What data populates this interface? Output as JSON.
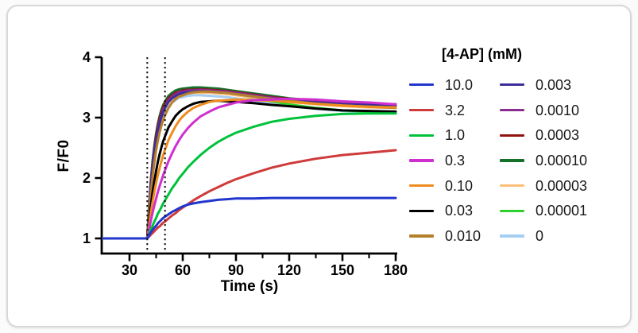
{
  "chart_data": {
    "type": "line",
    "title": "",
    "xlabel": "Time (s)",
    "ylabel": "F/F0",
    "x_ticks": [
      30,
      60,
      90,
      120,
      150,
      180
    ],
    "x_minor_ticks": [
      45,
      75,
      105,
      135,
      165
    ],
    "y_ticks": [
      1,
      2,
      3,
      4
    ],
    "xlim": [
      14.3,
      181
    ],
    "ylim": [
      0.75,
      4
    ],
    "grid": "off",
    "dashed_lines_x": [
      40,
      50
    ],
    "legend": {
      "title": "[4-AP] (mM)",
      "position": "right",
      "columns": 2
    },
    "t": [
      15,
      39,
      40,
      41,
      42,
      43,
      44,
      45,
      46,
      47,
      48,
      49,
      50,
      52,
      54,
      56,
      58,
      60,
      63,
      66,
      70,
      75,
      80,
      85,
      90,
      100,
      110,
      120,
      135,
      150,
      165,
      180
    ],
    "series": [
      {
        "label": "10.0",
        "color": "#2136cc",
        "values": [
          1,
          1,
          1,
          1.05,
          1.1,
          1.14,
          1.18,
          1.21,
          1.25,
          1.28,
          1.31,
          1.34,
          1.36,
          1.4,
          1.44,
          1.47,
          1.5,
          1.53,
          1.56,
          1.58,
          1.6,
          1.62,
          1.64,
          1.65,
          1.66,
          1.66,
          1.67,
          1.67,
          1.67,
          1.67,
          1.67,
          1.67
        ]
      },
      {
        "label": "3.2",
        "color": "#cf3a3a",
        "values": [
          1,
          1,
          1,
          1.03,
          1.06,
          1.09,
          1.12,
          1.15,
          1.18,
          1.2,
          1.23,
          1.26,
          1.28,
          1.33,
          1.38,
          1.42,
          1.47,
          1.51,
          1.57,
          1.63,
          1.7,
          1.78,
          1.85,
          1.92,
          1.98,
          2.08,
          2.17,
          2.24,
          2.32,
          2.38,
          2.42,
          2.46
        ]
      },
      {
        "label": "1.0",
        "color": "#00c23a",
        "values": [
          1,
          1,
          1,
          1.07,
          1.15,
          1.21,
          1.28,
          1.34,
          1.41,
          1.46,
          1.52,
          1.58,
          1.63,
          1.73,
          1.83,
          1.91,
          2.0,
          2.07,
          2.18,
          2.27,
          2.38,
          2.5,
          2.6,
          2.68,
          2.75,
          2.85,
          2.93,
          2.98,
          3.03,
          3.06,
          3.07,
          3.07
        ]
      },
      {
        "label": "0.3",
        "color": "#d02fd0",
        "values": [
          1,
          1,
          1,
          1.15,
          1.29,
          1.42,
          1.55,
          1.66,
          1.77,
          1.87,
          1.96,
          2.05,
          2.13,
          2.28,
          2.41,
          2.53,
          2.63,
          2.72,
          2.83,
          2.92,
          3.02,
          3.1,
          3.17,
          3.21,
          3.25,
          3.29,
          3.3,
          3.31,
          3.3,
          3.27,
          3.25,
          3.22
        ]
      },
      {
        "label": "0.10",
        "color": "#ef8c1f",
        "values": [
          1,
          1,
          1,
          1.22,
          1.42,
          1.6,
          1.77,
          1.92,
          2.05,
          2.17,
          2.28,
          2.38,
          2.47,
          2.63,
          2.75,
          2.86,
          2.95,
          3.02,
          3.1,
          3.16,
          3.21,
          3.26,
          3.28,
          3.29,
          3.3,
          3.29,
          3.28,
          3.26,
          3.23,
          3.2,
          3.18,
          3.17
        ]
      },
      {
        "label": "0.03",
        "color": "#000000",
        "values": [
          1,
          1,
          1,
          1.29,
          1.54,
          1.76,
          1.95,
          2.12,
          2.27,
          2.4,
          2.51,
          2.61,
          2.69,
          2.84,
          2.94,
          3.03,
          3.09,
          3.14,
          3.19,
          3.23,
          3.26,
          3.27,
          3.28,
          3.27,
          3.26,
          3.24,
          3.21,
          3.19,
          3.15,
          3.12,
          3.11,
          3.1
        ]
      },
      {
        "label": "0.010",
        "color": "#b5802c",
        "values": [
          1,
          1,
          1,
          1.41,
          1.74,
          2.02,
          2.26,
          2.46,
          2.62,
          2.76,
          2.87,
          2.96,
          3.04,
          3.16,
          3.25,
          3.31,
          3.35,
          3.37,
          3.4,
          3.42,
          3.43,
          3.43,
          3.42,
          3.41,
          3.39,
          3.35,
          3.31,
          3.28,
          3.23,
          3.2,
          3.18,
          3.16
        ]
      },
      {
        "label": "0.003",
        "color": "#3b2d9c",
        "values": [
          1,
          1,
          1,
          1.48,
          1.86,
          2.17,
          2.42,
          2.62,
          2.78,
          2.91,
          3.01,
          3.09,
          3.16,
          3.26,
          3.32,
          3.36,
          3.39,
          3.41,
          3.42,
          3.43,
          3.44,
          3.43,
          3.42,
          3.41,
          3.39,
          3.35,
          3.31,
          3.28,
          3.25,
          3.22,
          3.21,
          3.2
        ]
      },
      {
        "label": "0.0010",
        "color": "#8c2d91",
        "values": [
          1,
          1,
          1,
          1.49,
          1.88,
          2.2,
          2.45,
          2.65,
          2.81,
          2.94,
          3.04,
          3.13,
          3.19,
          3.29,
          3.35,
          3.39,
          3.42,
          3.43,
          3.45,
          3.45,
          3.46,
          3.45,
          3.44,
          3.43,
          3.41,
          3.37,
          3.33,
          3.3,
          3.26,
          3.23,
          3.22,
          3.21
        ]
      },
      {
        "label": "0.0003",
        "color": "#901111",
        "values": [
          1,
          1,
          1,
          1.51,
          1.92,
          2.24,
          2.49,
          2.7,
          2.86,
          2.99,
          3.09,
          3.17,
          3.23,
          3.32,
          3.37,
          3.41,
          3.43,
          3.45,
          3.46,
          3.46,
          3.47,
          3.46,
          3.45,
          3.44,
          3.42,
          3.38,
          3.34,
          3.31,
          3.27,
          3.24,
          3.23,
          3.22
        ]
      },
      {
        "label": "0.00010",
        "color": "#15702c",
        "values": [
          1,
          1,
          1,
          1.53,
          1.95,
          2.28,
          2.54,
          2.74,
          2.9,
          3.03,
          3.13,
          3.21,
          3.27,
          3.36,
          3.41,
          3.45,
          3.47,
          3.48,
          3.49,
          3.5,
          3.5,
          3.49,
          3.48,
          3.46,
          3.44,
          3.4,
          3.36,
          3.32,
          3.28,
          3.25,
          3.23,
          3.22
        ]
      },
      {
        "label": "0.00003",
        "color": "#fcbe77",
        "values": [
          1,
          1,
          1,
          1.48,
          1.87,
          2.18,
          2.43,
          2.62,
          2.78,
          2.91,
          3.01,
          3.09,
          3.16,
          3.25,
          3.31,
          3.35,
          3.38,
          3.39,
          3.4,
          3.41,
          3.41,
          3.41,
          3.4,
          3.39,
          3.37,
          3.33,
          3.29,
          3.26,
          3.22,
          3.19,
          3.17,
          3.16
        ]
      },
      {
        "label": "0.00001",
        "color": "#2ed02e",
        "values": [
          1,
          1,
          1,
          1.5,
          1.9,
          2.22,
          2.47,
          2.67,
          2.83,
          2.96,
          3.06,
          3.14,
          3.21,
          3.3,
          3.36,
          3.39,
          3.42,
          3.43,
          3.44,
          3.45,
          3.45,
          3.44,
          3.42,
          3.4,
          3.38,
          3.32,
          3.27,
          3.22,
          3.16,
          3.12,
          3.1,
          3.09
        ]
      },
      {
        "label": "0",
        "color": "#a6cdf2",
        "values": [
          1,
          1,
          1,
          1.45,
          1.81,
          2.11,
          2.34,
          2.54,
          2.7,
          2.83,
          2.93,
          3.02,
          3.08,
          3.18,
          3.25,
          3.29,
          3.33,
          3.34,
          3.36,
          3.37,
          3.37,
          3.36,
          3.35,
          3.34,
          3.32,
          3.28,
          3.24,
          3.2,
          3.15,
          3.11,
          3.09,
          3.08
        ]
      }
    ]
  }
}
